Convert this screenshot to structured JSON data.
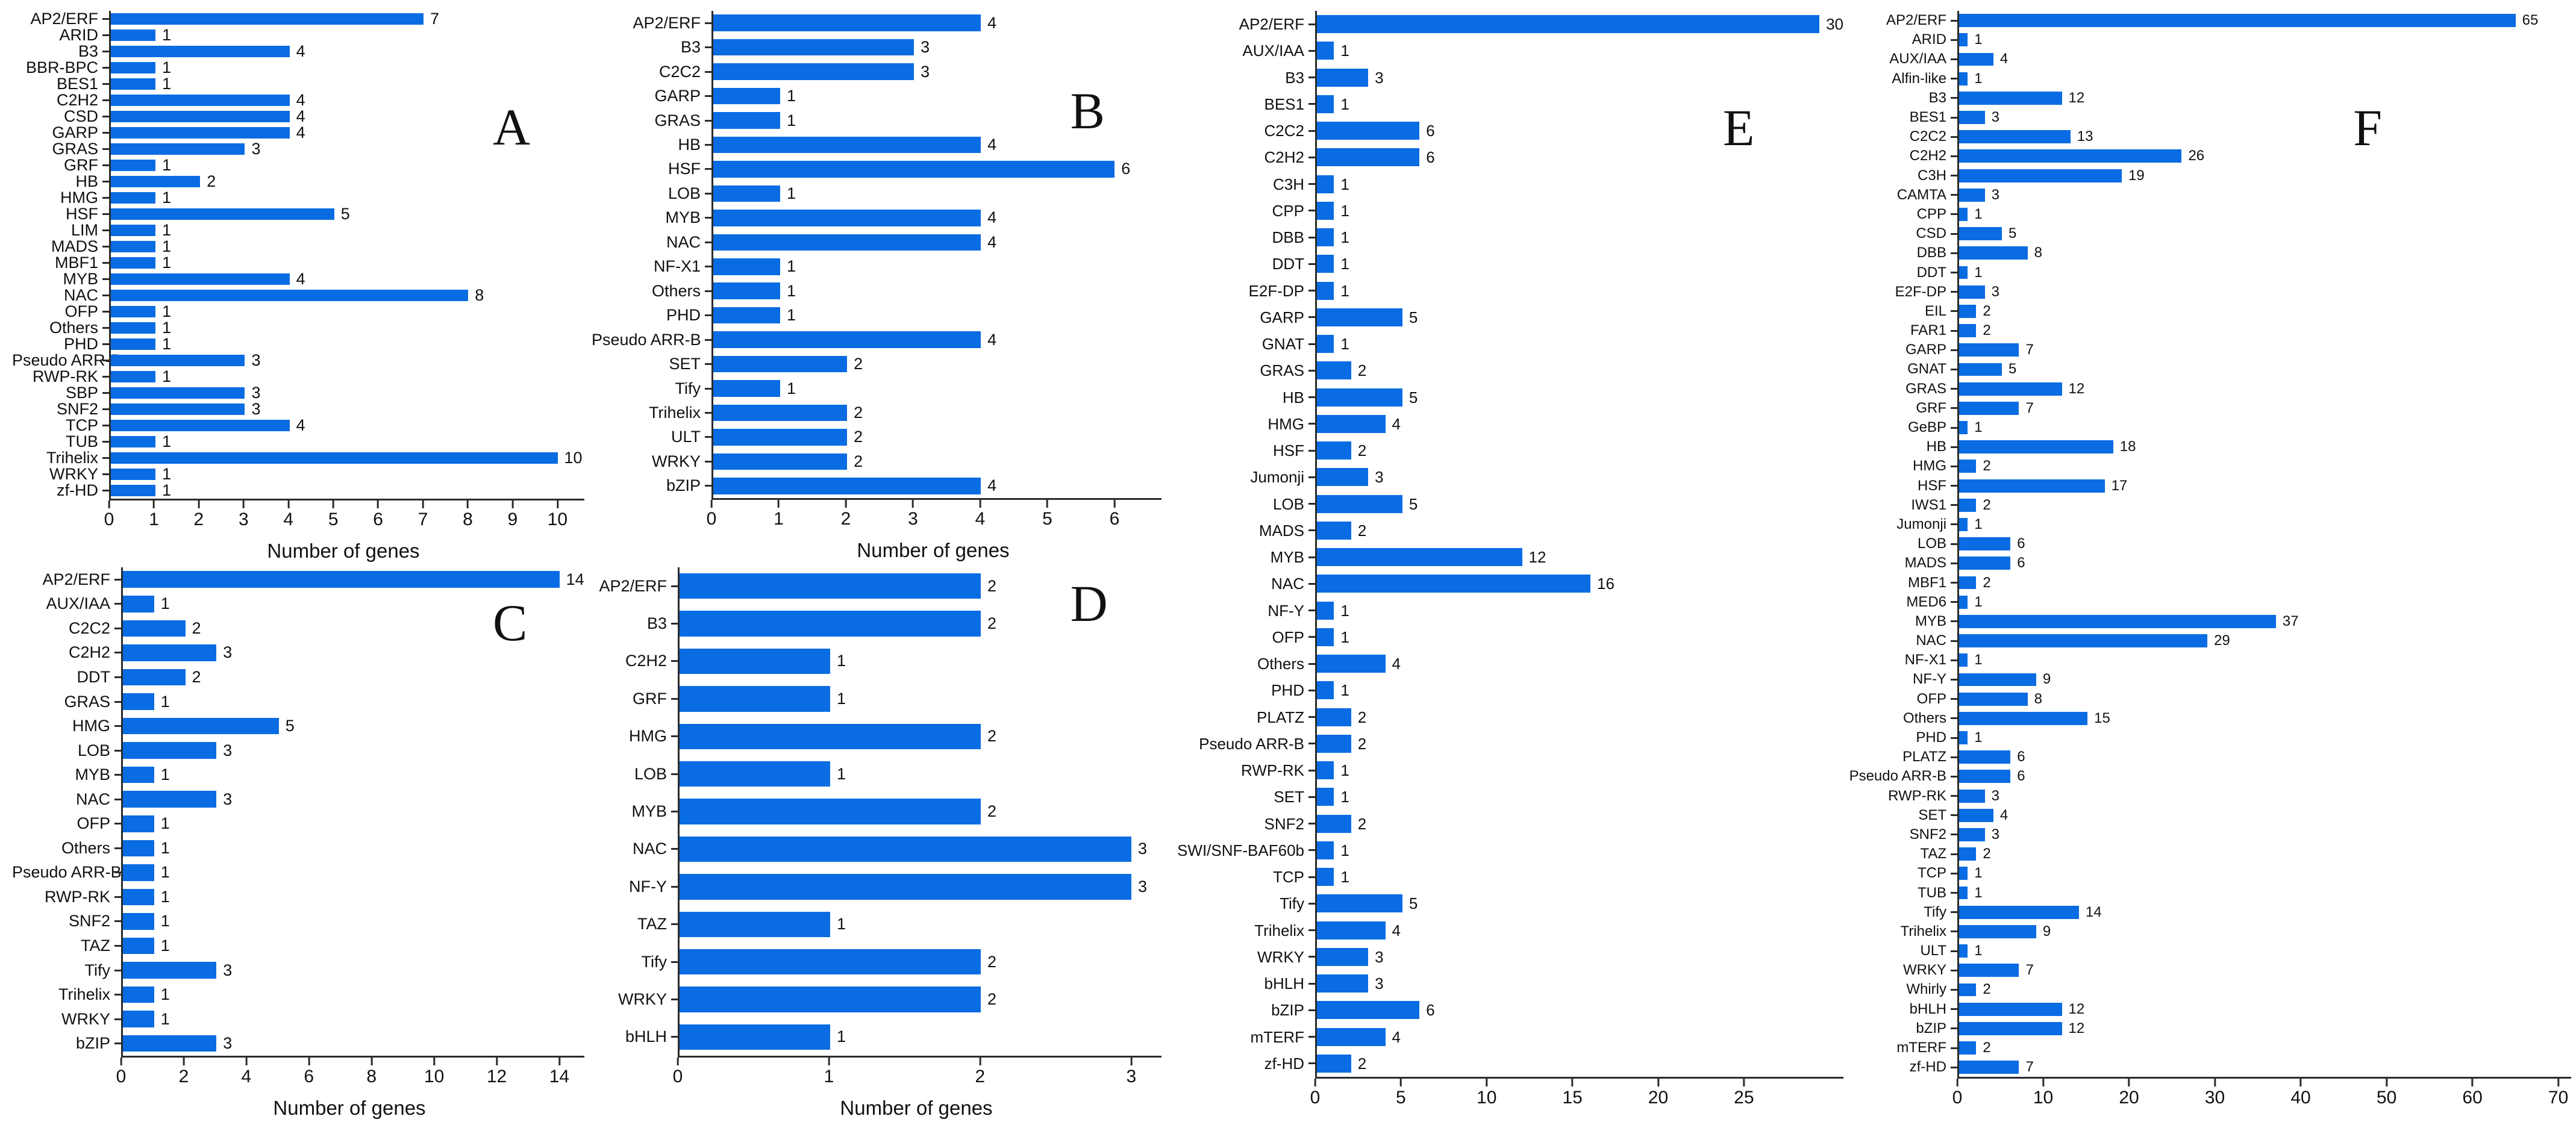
{
  "figure": {
    "background": "#ffffff",
    "bar_color": "#0a6ce2",
    "axis_color": "#2b2b2b"
  },
  "chart_data": [
    {
      "type": "bar",
      "orientation": "horizontal",
      "panel_label": "A",
      "xlabel": "Number of genes",
      "xticks": [
        0,
        1,
        2,
        3,
        4,
        5,
        6,
        7,
        8,
        9,
        10
      ],
      "xlim": [
        0,
        10.6
      ],
      "grid": false,
      "categories": [
        "AP2/ERF",
        "ARID",
        "B3",
        "BBR-BPC",
        "BES1",
        "C2H2",
        "CSD",
        "GARP",
        "GRAS",
        "GRF",
        "HB",
        "HMG",
        "HSF",
        "LIM",
        "MADS",
        "MBF1",
        "MYB",
        "NAC",
        "OFP",
        "Others",
        "PHD",
        "Pseudo ARR-B",
        "RWP-RK",
        "SBP",
        "SNF2",
        "TCP",
        "TUB",
        "Trihelix",
        "WRKY",
        "zf-HD"
      ],
      "values": [
        7,
        1,
        4,
        1,
        1,
        4,
        4,
        4,
        3,
        1,
        2,
        1,
        5,
        1,
        1,
        1,
        4,
        8,
        1,
        1,
        1,
        3,
        1,
        3,
        3,
        4,
        1,
        10,
        1,
        1
      ]
    },
    {
      "type": "bar",
      "orientation": "horizontal",
      "panel_label": "B",
      "xlabel": "Number of genes",
      "xticks": [
        0,
        1,
        2,
        3,
        4,
        5,
        6
      ],
      "xlim": [
        0,
        6.7
      ],
      "grid": false,
      "categories": [
        "AP2/ERF",
        "B3",
        "C2C2",
        "GARP",
        "GRAS",
        "HB",
        "HSF",
        "LOB",
        "MYB",
        "NAC",
        "NF-X1",
        "Others",
        "PHD",
        "Pseudo ARR-B",
        "SET",
        "Tify",
        "Trihelix",
        "ULT",
        "WRKY",
        "bZIP"
      ],
      "values": [
        4,
        3,
        3,
        1,
        1,
        4,
        6,
        1,
        4,
        4,
        1,
        1,
        1,
        4,
        2,
        1,
        2,
        2,
        2,
        4
      ]
    },
    {
      "type": "bar",
      "orientation": "horizontal",
      "panel_label": "C",
      "xlabel": "Number of genes",
      "xticks": [
        0,
        2,
        4,
        6,
        8,
        10,
        12,
        14
      ],
      "xlim": [
        0,
        14.8
      ],
      "grid": false,
      "categories": [
        "AP2/ERF",
        "AUX/IAA",
        "C2C2",
        "C2H2",
        "DDT",
        "GRAS",
        "HMG",
        "LOB",
        "MYB",
        "NAC",
        "OFP",
        "Others",
        "Pseudo ARR-B",
        "RWP-RK",
        "SNF2",
        "TAZ",
        "Tify",
        "Trihelix",
        "WRKY",
        "bZIP"
      ],
      "values": [
        14,
        1,
        2,
        3,
        2,
        1,
        5,
        3,
        1,
        3,
        1,
        1,
        1,
        1,
        1,
        1,
        3,
        1,
        1,
        3
      ]
    },
    {
      "type": "bar",
      "orientation": "horizontal",
      "panel_label": "D",
      "xlabel": "Number of genes",
      "xticks": [
        0,
        1,
        2,
        3
      ],
      "xlim": [
        0,
        3.2
      ],
      "grid": false,
      "categories": [
        "AP2/ERF",
        "B3",
        "C2H2",
        "GRF",
        "HMG",
        "LOB",
        "MYB",
        "NAC",
        "NF-Y",
        "TAZ",
        "Tify",
        "WRKY",
        "bHLH"
      ],
      "values": [
        2,
        2,
        1,
        1,
        2,
        1,
        2,
        3,
        3,
        1,
        2,
        2,
        1
      ]
    },
    {
      "type": "bar",
      "orientation": "horizontal",
      "panel_label": "E",
      "xlabel": "",
      "xticks": [
        0,
        5,
        10,
        15,
        20,
        25
      ],
      "xlim": [
        0,
        30.8
      ],
      "grid": false,
      "categories": [
        "AP2/ERF",
        "AUX/IAA",
        "B3",
        "BES1",
        "C2C2",
        "C2H2",
        "C3H",
        "CPP",
        "DBB",
        "DDT",
        "E2F-DP",
        "GARP",
        "GNAT",
        "GRAS",
        "HB",
        "HMG",
        "HSF",
        "Jumonji",
        "LOB",
        "MADS",
        "MYB",
        "NAC",
        "NF-Y",
        "OFP",
        "Others",
        "PHD",
        "PLATZ",
        "Pseudo ARR-B",
        "RWP-RK",
        "SET",
        "SNF2",
        "SWI/SNF-BAF60b",
        "TCP",
        "Tify",
        "Trihelix",
        "WRKY",
        "bHLH",
        "bZIP",
        "mTERF",
        "zf-HD"
      ],
      "values": [
        30,
        1,
        3,
        1,
        6,
        6,
        1,
        1,
        1,
        1,
        1,
        5,
        1,
        2,
        5,
        4,
        2,
        3,
        5,
        2,
        12,
        16,
        1,
        1,
        4,
        1,
        2,
        2,
        1,
        1,
        2,
        1,
        1,
        5,
        4,
        3,
        3,
        6,
        4,
        2
      ]
    },
    {
      "type": "bar",
      "orientation": "horizontal",
      "panel_label": "F",
      "xlabel": "",
      "xticks": [
        0,
        10,
        20,
        30,
        40,
        50,
        60,
        70
      ],
      "xlim": [
        0,
        71.5
      ],
      "grid": false,
      "categories": [
        "AP2/ERF",
        "ARID",
        "AUX/IAA",
        "Alfin-like",
        "B3",
        "BES1",
        "C2C2",
        "C2H2",
        "C3H",
        "CAMTA",
        "CPP",
        "CSD",
        "DBB",
        "DDT",
        "E2F-DP",
        "EIL",
        "FAR1",
        "GARP",
        "GNAT",
        "GRAS",
        "GRF",
        "GeBP",
        "HB",
        "HMG",
        "HSF",
        "IWS1",
        "Jumonji",
        "LOB",
        "MADS",
        "MBF1",
        "MED6",
        "MYB",
        "NAC",
        "NF-X1",
        "NF-Y",
        "OFP",
        "Others",
        "PHD",
        "PLATZ",
        "Pseudo ARR-B",
        "RWP-RK",
        "SET",
        "SNF2",
        "TAZ",
        "TCP",
        "TUB",
        "Tify",
        "Trihelix",
        "ULT",
        "WRKY",
        "Whirly",
        "bHLH",
        "bZIP",
        "mTERF",
        "zf-HD"
      ],
      "values": [
        65,
        1,
        4,
        1,
        12,
        3,
        13,
        26,
        19,
        3,
        1,
        5,
        8,
        1,
        3,
        2,
        2,
        7,
        5,
        12,
        7,
        1,
        18,
        2,
        17,
        2,
        1,
        6,
        6,
        2,
        1,
        37,
        29,
        1,
        9,
        8,
        15,
        1,
        6,
        6,
        3,
        4,
        3,
        2,
        1,
        1,
        14,
        9,
        1,
        7,
        2,
        12,
        12,
        2,
        7
      ]
    }
  ]
}
